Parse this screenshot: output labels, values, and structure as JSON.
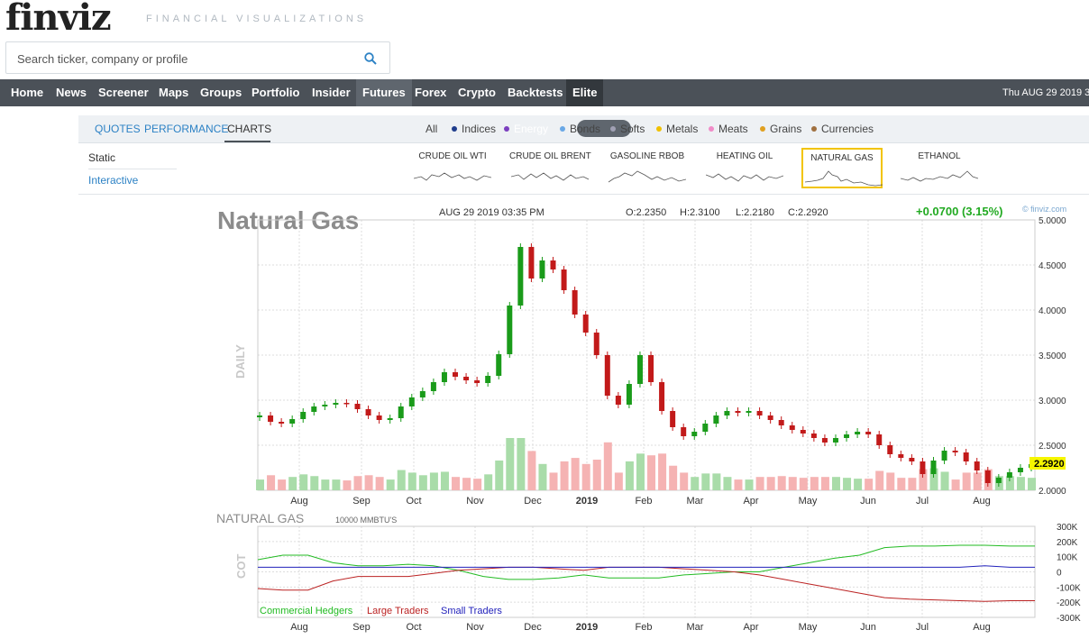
{
  "header": {
    "logo": "finviz",
    "tagline": "FINANCIAL VISUALIZATIONS",
    "search_placeholder": "Search ticker, company or profile"
  },
  "nav": {
    "items": [
      "Home",
      "News",
      "Screener",
      "Maps",
      "Groups",
      "Portfolio",
      "Insider",
      "Futures",
      "Forex",
      "Crypto",
      "Backtests",
      "Elite"
    ],
    "active": "Futures",
    "date": "Thu AUG 29 2019 3"
  },
  "subnav": {
    "tabs": [
      "QUOTES",
      "PERFORMANCE",
      "CHARTS"
    ],
    "active_tab": "CHARTS",
    "filters": [
      {
        "label": "All",
        "color": ""
      },
      {
        "label": "Indices",
        "color": "#1f3d8c"
      },
      {
        "label": "Energy",
        "color": "#7b3fbf"
      },
      {
        "label": "Bonds",
        "color": "#6aa8e6"
      },
      {
        "label": "Softs",
        "color": "#a0a0b4"
      },
      {
        "label": "Metals",
        "color": "#f0c000"
      },
      {
        "label": "Meats",
        "color": "#f08cc8"
      },
      {
        "label": "Grains",
        "color": "#e0a020"
      },
      {
        "label": "Currencies",
        "color": "#a07040"
      }
    ],
    "active_filter": "Energy"
  },
  "options": {
    "static": "Static",
    "interactive": "Interactive"
  },
  "thumbnails": [
    {
      "label": "CRUDE OIL WTI",
      "selected": false
    },
    {
      "label": "CRUDE OIL BRENT",
      "selected": false
    },
    {
      "label": "GASOLINE RBOB",
      "selected": false
    },
    {
      "label": "HEATING OIL",
      "selected": false
    },
    {
      "label": "NATURAL GAS",
      "selected": true
    },
    {
      "label": "ETHANOL",
      "selected": false
    }
  ],
  "chart_header": {
    "title": "Natural Gas",
    "datetime": "AUG 29 2019 03:35 PM",
    "open": "O:2.2350",
    "high": "H:2.3100",
    "low": "L:2.2180",
    "close": "C:2.2920",
    "change": "+0.0700 (3.15%)",
    "watermark": "© finviz.com",
    "side_label": "DAILY",
    "last_price": "2.2920"
  },
  "cot_header": {
    "title": "NATURAL GAS",
    "units": "10000 MMBTU'S",
    "side_label": "COT"
  },
  "colors": {
    "up": "#1a9b1a",
    "down": "#c21a1a",
    "vol_up": "#a9dca9",
    "vol_down": "#f5b3b3",
    "commercial": "#22bb22",
    "large": "#bb2222",
    "small": "#2222bb",
    "change": "#22aa22",
    "highlight": "#f6f600"
  },
  "chart_data": [
    {
      "type": "candlestick",
      "title": "Natural Gas",
      "x_labels": [
        "Aug",
        "Sep",
        "Oct",
        "Nov",
        "Dec",
        "2019",
        "Feb",
        "Mar",
        "Apr",
        "May",
        "Jun",
        "Jul",
        "Aug"
      ],
      "y_ticks": [
        "5.0000",
        "4.5000",
        "4.0000",
        "3.5000",
        "3.0000",
        "2.5000",
        "2.0000"
      ],
      "ylim": [
        2.0,
        5.0
      ],
      "grid": true,
      "series": [
        {
          "name": "Close",
          "values": [
            2.83,
            2.76,
            2.74,
            2.79,
            2.87,
            2.93,
            2.95,
            2.97,
            2.96,
            2.9,
            2.83,
            2.78,
            2.8,
            2.93,
            3.03,
            3.1,
            3.2,
            3.31,
            3.26,
            3.22,
            3.19,
            3.27,
            3.51,
            4.05,
            4.7,
            4.35,
            4.55,
            4.45,
            4.22,
            3.95,
            3.75,
            3.5,
            3.05,
            2.95,
            3.18,
            3.5,
            3.2,
            2.88,
            2.7,
            2.6,
            2.65,
            2.74,
            2.83,
            2.88,
            2.86,
            2.88,
            2.83,
            2.78,
            2.72,
            2.67,
            2.63,
            2.58,
            2.53,
            2.58,
            2.62,
            2.65,
            2.62,
            2.5,
            2.4,
            2.36,
            2.32,
            2.18,
            2.33,
            2.44,
            2.42,
            2.32,
            2.22,
            2.08,
            2.14,
            2.2,
            2.25,
            2.29
          ]
        }
      ]
    },
    {
      "type": "line",
      "title": "NATURAL GAS",
      "x_labels": [
        "Aug",
        "Sep",
        "Oct",
        "Nov",
        "Dec",
        "2019",
        "Feb",
        "Mar",
        "Apr",
        "May",
        "Jun",
        "Jul",
        "Aug"
      ],
      "y_ticks": [
        "300K",
        "200K",
        "100K",
        "0",
        "-100K",
        "-200K",
        "-300K"
      ],
      "ylim": [
        -300000,
        300000
      ],
      "series": [
        {
          "name": "Commercial Hedgers",
          "values": [
            80000,
            110000,
            110000,
            60000,
            40000,
            40000,
            50000,
            40000,
            10000,
            -30000,
            -50000,
            -50000,
            -40000,
            -20000,
            -40000,
            -40000,
            -40000,
            -20000,
            -10000,
            0,
            0,
            30000,
            60000,
            90000,
            110000,
            160000,
            170000,
            170000,
            175000,
            175000,
            170000,
            170000
          ]
        },
        {
          "name": "Large Traders",
          "values": [
            -110000,
            -120000,
            -120000,
            -60000,
            -30000,
            -30000,
            -30000,
            -10000,
            10000,
            20000,
            30000,
            30000,
            20000,
            10000,
            30000,
            30000,
            30000,
            20000,
            10000,
            0,
            -20000,
            -50000,
            -80000,
            -110000,
            -140000,
            -170000,
            -180000,
            -185000,
            -190000,
            -195000,
            -190000,
            -190000
          ]
        },
        {
          "name": "Small Traders",
          "values": [
            30000,
            30000,
            30000,
            30000,
            30000,
            30000,
            30000,
            30000,
            30000,
            30000,
            30000,
            30000,
            30000,
            30000,
            30000,
            30000,
            30000,
            30000,
            30000,
            30000,
            30000,
            30000,
            30000,
            30000,
            30000,
            30000,
            30000,
            30000,
            30000,
            40000,
            30000,
            30000
          ]
        }
      ]
    }
  ]
}
